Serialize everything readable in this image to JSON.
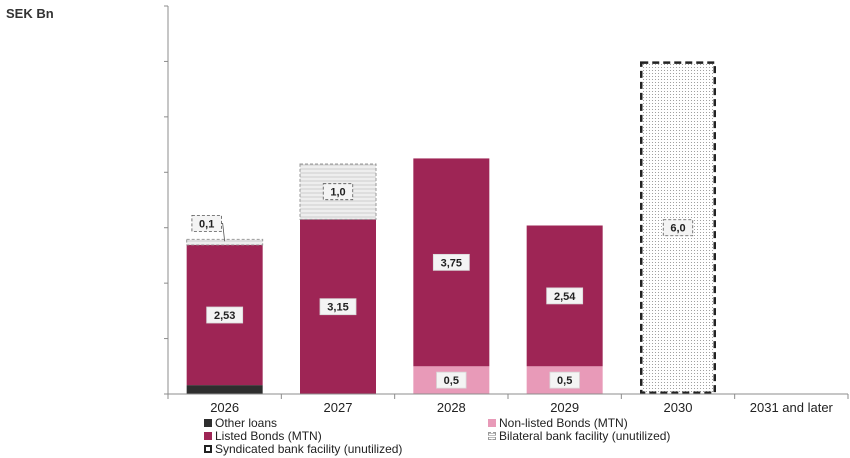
{
  "chart_data": {
    "type": "bar",
    "stacked": true,
    "unit_label": "SEK Bn",
    "categories": [
      "2026",
      "2027",
      "2028",
      "2029",
      "2030",
      "2031 and later"
    ],
    "series": [
      {
        "name": "Other loans",
        "values": [
          0.16,
          0,
          0,
          0,
          0,
          0
        ],
        "color": "#2e2e2e",
        "pattern": "solid"
      },
      {
        "name": "Non-listed Bonds (MTN)",
        "values": [
          0,
          0,
          0.5,
          0.5,
          0,
          0
        ],
        "color": "#e89ab8",
        "pattern": "solid"
      },
      {
        "name": "Listed Bonds (MTN)",
        "values": [
          2.53,
          3.15,
          3.75,
          2.54,
          0,
          0
        ],
        "color": "#9e2555",
        "pattern": "solid"
      },
      {
        "name": "Bilateral bank facility (unutilized)",
        "values": [
          0.1,
          1.0,
          0,
          0,
          0,
          0
        ],
        "color": "#bdbdbd",
        "pattern": "horizontal-lines"
      },
      {
        "name": "Syndicated bank facility (unutilized)",
        "values": [
          0,
          0,
          0,
          0,
          6.0,
          0
        ],
        "color": "#222222",
        "pattern": "dotted-dashed-outline"
      }
    ],
    "data_labels": [
      {
        "category": "2026",
        "text": "2,53"
      },
      {
        "category": "2026",
        "text": "0,1"
      },
      {
        "category": "2027",
        "text": "3,15"
      },
      {
        "category": "2027",
        "text": "1,0"
      },
      {
        "category": "2028",
        "text": "3,75"
      },
      {
        "category": "2028",
        "text": "0,5"
      },
      {
        "category": "2029",
        "text": "2,54"
      },
      {
        "category": "2029",
        "text": "0,5"
      },
      {
        "category": "2030",
        "text": "6,0"
      }
    ],
    "ylim": [
      0,
      7
    ],
    "y_tick_step": 1,
    "y_tick_labels_shown": false,
    "grid": false,
    "legend_position": "bottom"
  }
}
